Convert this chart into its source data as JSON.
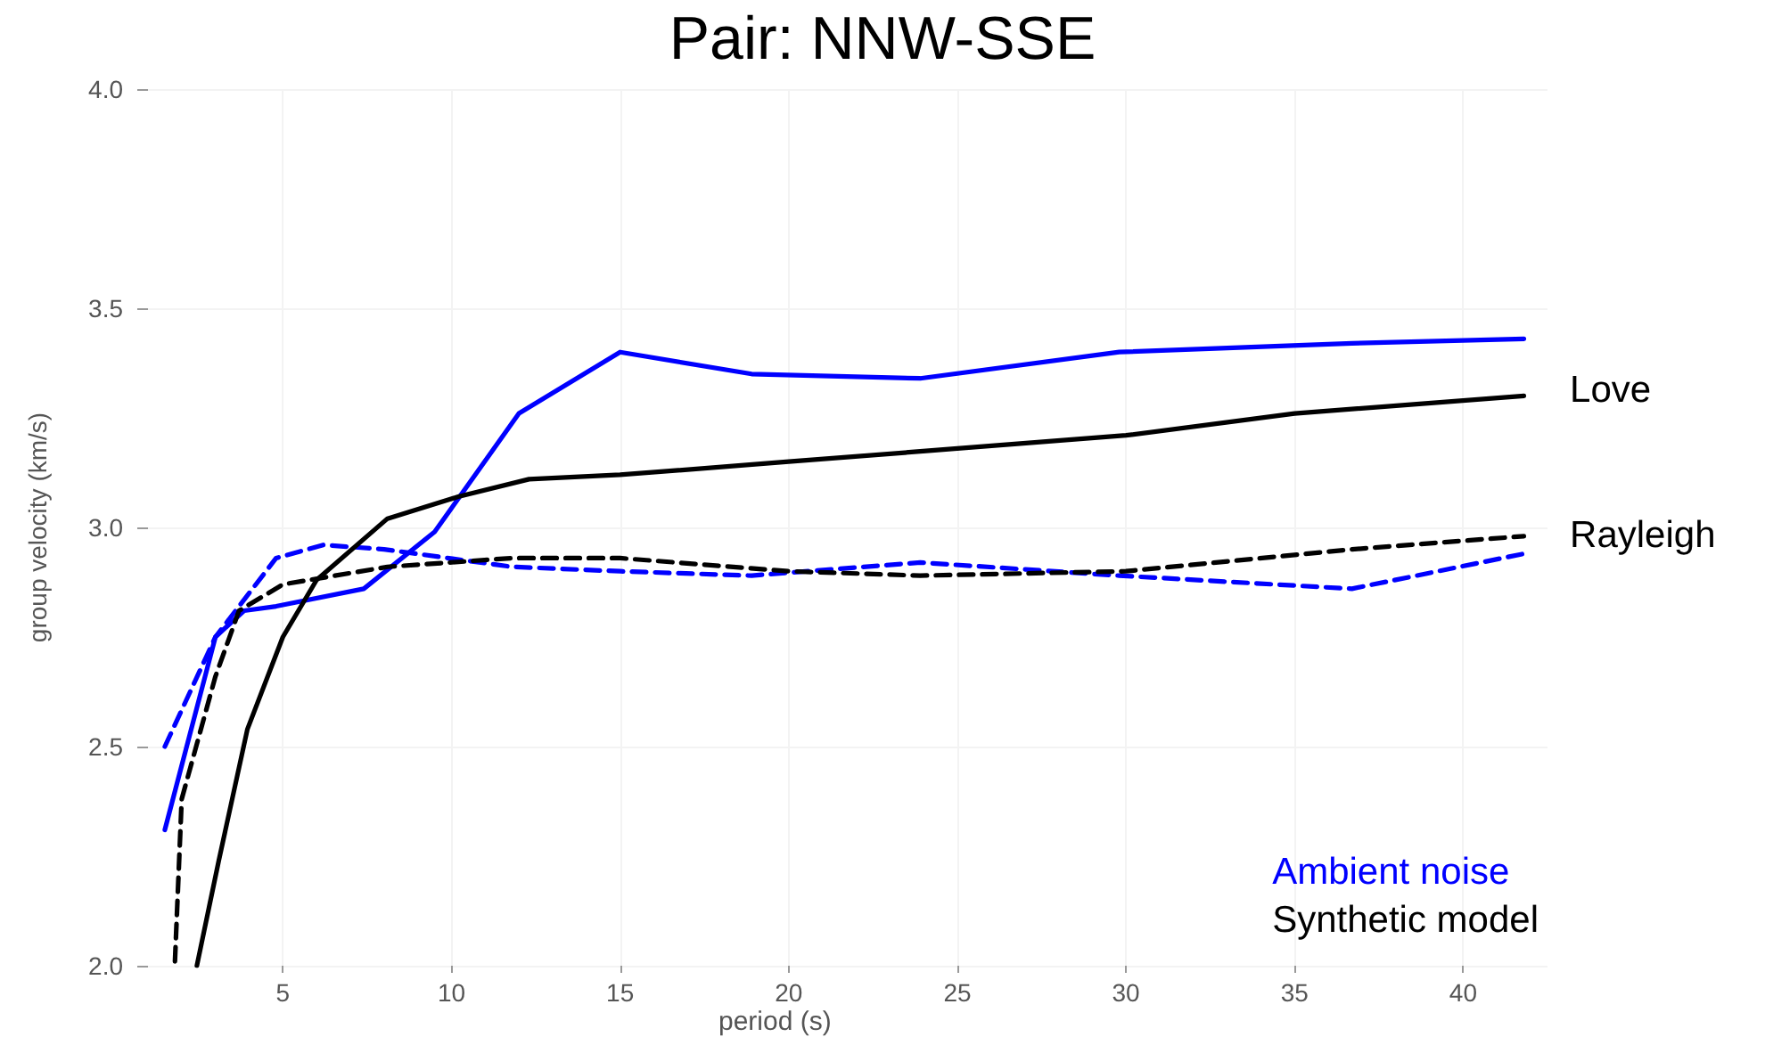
{
  "chart_data": {
    "type": "line",
    "title": "Pair: NNW-SSE",
    "xlabel": "period (s)",
    "ylabel": "group velocity (km/s)",
    "xlim": [
      1,
      42.5
    ],
    "xticks": [
      5,
      10,
      15,
      20,
      25,
      30,
      35,
      40
    ],
    "ylim": [
      2.0,
      4.0
    ],
    "yticks": [
      {
        "value": 2.0,
        "label": "2.0"
      },
      {
        "value": 2.5,
        "label": "2.5"
      },
      {
        "value": 3.0,
        "label": "3.0"
      },
      {
        "value": 3.5,
        "label": "3.5"
      },
      {
        "value": 4.0,
        "label": "4.0"
      }
    ],
    "grid": true,
    "legend": "bottom right",
    "marker": "none",
    "annotations": [
      {
        "text": "Love",
        "x": 42,
        "y": 3.3
      },
      {
        "text": "Rayleigh",
        "x": 42,
        "y": 2.97
      }
    ],
    "series": [
      {
        "name": "Ambient noise",
        "color": "#0000ff",
        "line_style": "solid",
        "x": [
          1.5,
          3.0,
          3.85,
          4.8,
          7.4,
          9.5,
          12.0,
          15,
          18.9,
          23.9,
          29.8,
          36.7,
          41.8
        ],
        "values": [
          2.31,
          2.75,
          2.81,
          2.82,
          2.86,
          2.99,
          3.26,
          3.4,
          3.35,
          3.34,
          3.4,
          3.42,
          3.43
        ]
      },
      {
        "color": "#0000ff",
        "line_style": "dashed",
        "x": [
          1.5,
          3.0,
          4.8,
          6.2,
          8,
          11.8,
          15,
          18.9,
          23.9,
          29.8,
          36.7,
          41.8
        ],
        "values": [
          2.5,
          2.75,
          2.93,
          2.96,
          2.95,
          2.91,
          2.9,
          2.89,
          2.92,
          2.89,
          2.86,
          2.94
        ]
      },
      {
        "name": "Synthetic model",
        "color": "#000000",
        "line_style": "solid",
        "x": [
          2.45,
          3.1,
          3.95,
          5,
          6.0,
          8.1,
          10.2,
          12.3,
          15,
          20,
          25,
          30,
          35,
          41.8
        ],
        "values": [
          2.0,
          2.24,
          2.54,
          2.75,
          2.88,
          3.02,
          3.07,
          3.11,
          3.12,
          3.15,
          3.18,
          3.21,
          3.26,
          3.3
        ]
      },
      {
        "color": "#000000",
        "line_style": "dashed",
        "x": [
          1.8,
          2.0,
          3.0,
          3.7,
          5.0,
          8.1,
          11.8,
          15,
          20,
          23.9,
          30,
          36.7,
          41.8
        ],
        "values": [
          2.01,
          2.38,
          2.66,
          2.81,
          2.87,
          2.91,
          2.93,
          2.93,
          2.9,
          2.89,
          2.9,
          2.95,
          2.98
        ]
      }
    ]
  }
}
